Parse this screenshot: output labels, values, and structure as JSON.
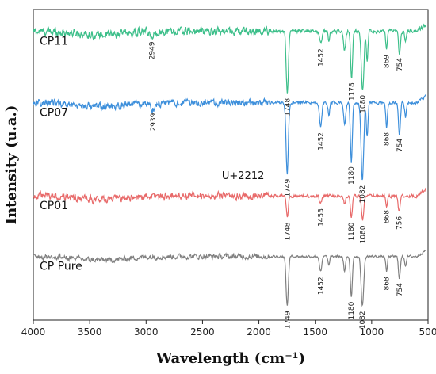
{
  "chart_data": {
    "type": "line",
    "xlabel": "Wavelength (cm⁻¹)",
    "ylabel": "Intensity (u.a.)",
    "xlim": [
      4000,
      500
    ],
    "x_reversed": true,
    "x_ticks": [
      4000,
      3500,
      3000,
      2500,
      2000,
      1500,
      1000,
      500
    ],
    "y_ticks": [],
    "grid": false,
    "legend": "none",
    "annotation": "U+2212",
    "series": [
      {
        "name": "CP11",
        "color": "#3dbf8a",
        "baseline": 0.93,
        "noise": 0.014,
        "peaks": [
          {
            "x": 2949,
            "depth": 0.018,
            "width": 30,
            "label": "2949"
          },
          {
            "x": 1748,
            "depth": 0.2,
            "width": 14,
            "label": "1748"
          },
          {
            "x": 1452,
            "depth": 0.04,
            "width": 14,
            "label": "1452"
          },
          {
            "x": 1380,
            "depth": 0.03,
            "width": 10,
            "label": ""
          },
          {
            "x": 1240,
            "depth": 0.06,
            "width": 14,
            "label": ""
          },
          {
            "x": 1178,
            "depth": 0.15,
            "width": 12,
            "label": "1178"
          },
          {
            "x": 1080,
            "depth": 0.19,
            "width": 16,
            "label": "1080"
          },
          {
            "x": 1040,
            "depth": 0.09,
            "width": 10,
            "label": ""
          },
          {
            "x": 869,
            "depth": 0.06,
            "width": 10,
            "label": "869"
          },
          {
            "x": 754,
            "depth": 0.07,
            "width": 12,
            "label": "754"
          },
          {
            "x": 700,
            "depth": 0.03,
            "width": 10,
            "label": ""
          }
        ]
      },
      {
        "name": "CP07",
        "color": "#3d8fdb",
        "baseline": 0.7,
        "noise": 0.012,
        "peaks": [
          {
            "x": 2939,
            "depth": 0.018,
            "width": 30,
            "label": "2939"
          },
          {
            "x": 1749,
            "depth": 0.23,
            "width": 14,
            "label": "1749"
          },
          {
            "x": 1452,
            "depth": 0.08,
            "width": 14,
            "label": "1452"
          },
          {
            "x": 1380,
            "depth": 0.04,
            "width": 10,
            "label": ""
          },
          {
            "x": 1240,
            "depth": 0.07,
            "width": 14,
            "label": ""
          },
          {
            "x": 1180,
            "depth": 0.19,
            "width": 12,
            "label": "1180"
          },
          {
            "x": 1082,
            "depth": 0.25,
            "width": 16,
            "label": "1082"
          },
          {
            "x": 1040,
            "depth": 0.11,
            "width": 10,
            "label": ""
          },
          {
            "x": 868,
            "depth": 0.08,
            "width": 10,
            "label": "868"
          },
          {
            "x": 754,
            "depth": 0.1,
            "width": 12,
            "label": "754"
          },
          {
            "x": 700,
            "depth": 0.05,
            "width": 10,
            "label": ""
          }
        ]
      },
      {
        "name": "CP01",
        "color": "#e86a6a",
        "baseline": 0.4,
        "noise": 0.012,
        "peaks": [
          {
            "x": 1748,
            "depth": 0.07,
            "width": 12,
            "label": "1748"
          },
          {
            "x": 1453,
            "depth": 0.025,
            "width": 14,
            "label": "1453"
          },
          {
            "x": 1240,
            "depth": 0.025,
            "width": 12,
            "label": ""
          },
          {
            "x": 1180,
            "depth": 0.07,
            "width": 12,
            "label": "1180"
          },
          {
            "x": 1080,
            "depth": 0.08,
            "width": 14,
            "label": "1080"
          },
          {
            "x": 868,
            "depth": 0.03,
            "width": 10,
            "label": "868"
          },
          {
            "x": 756,
            "depth": 0.05,
            "width": 12,
            "label": "756"
          }
        ]
      },
      {
        "name": "CP Pure",
        "color": "#808080",
        "baseline": 0.205,
        "noise": 0.009,
        "peaks": [
          {
            "x": 1749,
            "depth": 0.16,
            "width": 14,
            "label": "1749"
          },
          {
            "x": 1452,
            "depth": 0.05,
            "width": 14,
            "label": "1452"
          },
          {
            "x": 1380,
            "depth": 0.03,
            "width": 10,
            "label": ""
          },
          {
            "x": 1240,
            "depth": 0.05,
            "width": 12,
            "label": ""
          },
          {
            "x": 1180,
            "depth": 0.13,
            "width": 12,
            "label": "1180"
          },
          {
            "x": 1082,
            "depth": 0.16,
            "width": 16,
            "label": "1082"
          },
          {
            "x": 868,
            "depth": 0.05,
            "width": 10,
            "label": "868"
          },
          {
            "x": 754,
            "depth": 0.07,
            "width": 12,
            "label": "754"
          },
          {
            "x": 700,
            "depth": 0.03,
            "width": 10,
            "label": ""
          }
        ]
      }
    ]
  }
}
